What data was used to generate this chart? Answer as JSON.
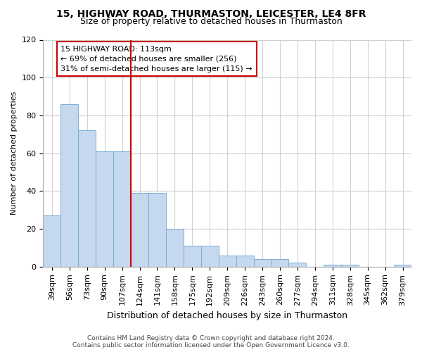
{
  "title1": "15, HIGHWAY ROAD, THURMASTON, LEICESTER, LE4 8FR",
  "title2": "Size of property relative to detached houses in Thurmaston",
  "xlabel": "Distribution of detached houses by size in Thurmaston",
  "ylabel": "Number of detached properties",
  "footer": "Contains HM Land Registry data © Crown copyright and database right 2024.\nContains public sector information licensed under the Open Government Licence v3.0.",
  "categories": [
    "39sqm",
    "56sqm",
    "73sqm",
    "90sqm",
    "107sqm",
    "124sqm",
    "141sqm",
    "158sqm",
    "175sqm",
    "192sqm",
    "209sqm",
    "226sqm",
    "243sqm",
    "260sqm",
    "277sqm",
    "294sqm",
    "311sqm",
    "328sqm",
    "345sqm",
    "362sqm",
    "379sqm"
  ],
  "values": [
    27,
    86,
    72,
    61,
    61,
    39,
    39,
    20,
    11,
    11,
    6,
    6,
    4,
    4,
    2,
    0,
    1,
    1,
    0,
    0,
    1
  ],
  "bar_color": "#c5d8ee",
  "bar_edge_color": "#7bafd4",
  "ylim": [
    0,
    120
  ],
  "yticks": [
    0,
    20,
    40,
    60,
    80,
    100,
    120
  ],
  "vline_x": 4.5,
  "vline_color": "#cc0000",
  "annotation_line1": "15 HIGHWAY ROAD: 113sqm",
  "annotation_line2": "← 69% of detached houses are smaller (256)",
  "annotation_line3": "31% of semi-detached houses are larger (115) →",
  "box_edge_color": "#cc0000",
  "background_color": "#ffffff",
  "grid_color": "#d0d0d0",
  "title1_fontsize": 10,
  "title2_fontsize": 9,
  "ylabel_fontsize": 8,
  "xlabel_fontsize": 9,
  "tick_fontsize": 8,
  "footer_fontsize": 6.5
}
